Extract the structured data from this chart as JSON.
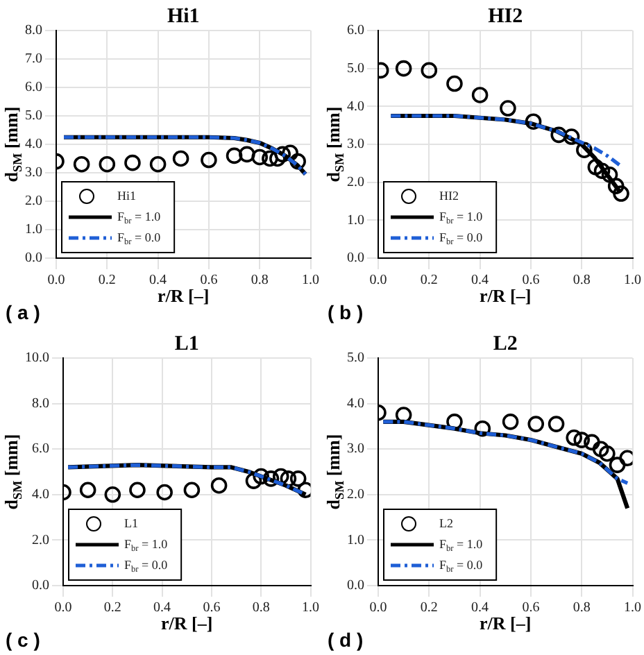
{
  "chart_data": [
    {
      "type": "line",
      "title": "Hi1",
      "xlabel": "r/R [–]",
      "ylabel": "d$_{SM}$ [mm]",
      "annotations": [
        "( a )"
      ],
      "grid": true,
      "legend": "bottom left",
      "xlim": [
        0,
        1
      ],
      "xticks": [
        {
          "value": 0,
          "label": "0.0"
        },
        {
          "value": 0.2,
          "label": "0.2"
        },
        {
          "value": 0.4,
          "label": "0.4"
        },
        {
          "value": 0.6,
          "label": "0.6"
        },
        {
          "value": 0.8,
          "label": "0.8"
        },
        {
          "value": 1,
          "label": "1.0"
        }
      ],
      "ylim": [
        0,
        8
      ],
      "yticks": [
        {
          "value": 0,
          "label": "0.0"
        },
        {
          "value": 1,
          "label": "1.0"
        },
        {
          "value": 2,
          "label": "2.0"
        },
        {
          "value": 3,
          "label": "3.0"
        },
        {
          "value": 4,
          "label": "4.0"
        },
        {
          "value": 5,
          "label": "5.0"
        },
        {
          "value": 6,
          "label": "6.0"
        },
        {
          "value": 7,
          "label": "7.0"
        },
        {
          "value": 8,
          "label": "8.0"
        }
      ],
      "series": [
        {
          "name": "Hi1",
          "type": "scatter",
          "marker": "circle",
          "color": "#000000",
          "x": [
            0.0,
            0.1,
            0.2,
            0.3,
            0.4,
            0.49,
            0.6,
            0.7,
            0.75,
            0.8,
            0.84,
            0.87,
            0.89,
            0.92,
            0.95
          ],
          "values": [
            3.4,
            3.3,
            3.3,
            3.35,
            3.3,
            3.5,
            3.45,
            3.6,
            3.65,
            3.55,
            3.5,
            3.5,
            3.65,
            3.7,
            3.4
          ]
        },
        {
          "name": "F$_{br}$ = 1.0",
          "type": "line",
          "line_style": "solid",
          "color": "#000000",
          "x": [
            0.03,
            0.3,
            0.6,
            0.7,
            0.75,
            0.8,
            0.85,
            0.9,
            0.95,
            0.98
          ],
          "values": [
            4.25,
            4.25,
            4.25,
            4.22,
            4.15,
            4.05,
            3.85,
            3.6,
            3.25,
            2.95
          ]
        },
        {
          "name": "F$_{br}$ = 0.0",
          "type": "line",
          "line_style": "dashed",
          "color": "#1f5fd6",
          "x": [
            0.03,
            0.3,
            0.6,
            0.7,
            0.75,
            0.8,
            0.85,
            0.9,
            0.95,
            0.98
          ],
          "values": [
            4.25,
            4.25,
            4.25,
            4.22,
            4.15,
            4.05,
            3.85,
            3.6,
            3.25,
            2.95
          ]
        }
      ]
    },
    {
      "type": "line",
      "title": "HI2",
      "xlabel": "r/R [–]",
      "ylabel": "d$_{SM}$ [mm]",
      "annotations": [
        "( b )"
      ],
      "grid": true,
      "legend": "bottom left",
      "xlim": [
        0,
        1
      ],
      "xticks": [
        {
          "value": 0,
          "label": "0.0"
        },
        {
          "value": 0.2,
          "label": "0.2"
        },
        {
          "value": 0.4,
          "label": "0.4"
        },
        {
          "value": 0.6,
          "label": "0.6"
        },
        {
          "value": 0.8,
          "label": "0.8"
        },
        {
          "value": 1,
          "label": "1.0"
        }
      ],
      "ylim": [
        0,
        6
      ],
      "yticks": [
        {
          "value": 0,
          "label": "0.0"
        },
        {
          "value": 1,
          "label": "1.0"
        },
        {
          "value": 2,
          "label": "2.0"
        },
        {
          "value": 3,
          "label": "3.0"
        },
        {
          "value": 4,
          "label": "4.0"
        },
        {
          "value": 5,
          "label": "5.0"
        },
        {
          "value": 6,
          "label": "6.0"
        }
      ],
      "series": [
        {
          "name": "HI2",
          "type": "scatter",
          "marker": "circle",
          "color": "#000000",
          "x": [
            0.01,
            0.1,
            0.2,
            0.3,
            0.4,
            0.51,
            0.61,
            0.71,
            0.76,
            0.81,
            0.855,
            0.88,
            0.91,
            0.935,
            0.955
          ],
          "values": [
            4.95,
            5.0,
            4.95,
            4.6,
            4.3,
            3.95,
            3.6,
            3.25,
            3.2,
            2.85,
            2.4,
            2.3,
            2.2,
            1.9,
            1.7
          ]
        },
        {
          "name": "F$_{br}$ = 1.0",
          "type": "line",
          "line_style": "solid",
          "color": "#000000",
          "x": [
            0.05,
            0.3,
            0.5,
            0.6,
            0.7,
            0.8,
            0.85,
            0.9,
            0.95
          ],
          "values": [
            3.75,
            3.75,
            3.65,
            3.55,
            3.35,
            3.0,
            2.65,
            2.2,
            1.75
          ]
        },
        {
          "name": "F$_{br}$ = 0.0",
          "type": "line",
          "line_style": "dashed",
          "color": "#1f5fd6",
          "x": [
            0.05,
            0.3,
            0.5,
            0.6,
            0.7,
            0.8,
            0.85,
            0.9,
            0.96
          ],
          "values": [
            3.75,
            3.75,
            3.65,
            3.55,
            3.35,
            3.05,
            2.9,
            2.7,
            2.4
          ]
        }
      ]
    },
    {
      "type": "line",
      "title": "L1",
      "xlabel": "r/R [–]",
      "ylabel": "d$_{SM}$ [mm]",
      "annotations": [
        "( c )"
      ],
      "grid": true,
      "legend": "bottom left",
      "xlim": [
        0,
        1
      ],
      "xticks": [
        {
          "value": 0,
          "label": "0.0"
        },
        {
          "value": 0.2,
          "label": "0.2"
        },
        {
          "value": 0.4,
          "label": "0.4"
        },
        {
          "value": 0.6,
          "label": "0.6"
        },
        {
          "value": 0.8,
          "label": "0.8"
        },
        {
          "value": 1,
          "label": "1.0"
        }
      ],
      "ylim": [
        0,
        10
      ],
      "yticks": [
        {
          "value": 0,
          "label": "0.0"
        },
        {
          "value": 2,
          "label": "2.0"
        },
        {
          "value": 4,
          "label": "4.0"
        },
        {
          "value": 6,
          "label": "6.0"
        },
        {
          "value": 8,
          "label": "8.0"
        },
        {
          "value": 10,
          "label": "10.0"
        }
      ],
      "series": [
        {
          "name": "L1",
          "type": "scatter",
          "marker": "circle",
          "color": "#000000",
          "x": [
            0.0,
            0.1,
            0.2,
            0.3,
            0.41,
            0.52,
            0.63,
            0.77,
            0.8,
            0.84,
            0.88,
            0.91,
            0.95,
            0.98
          ],
          "values": [
            4.1,
            4.2,
            4.0,
            4.2,
            4.1,
            4.2,
            4.4,
            4.6,
            4.8,
            4.7,
            4.8,
            4.7,
            4.7,
            4.2
          ]
        },
        {
          "name": "F$_{br}$ = 1.0",
          "type": "line",
          "line_style": "solid",
          "color": "#000000",
          "x": [
            0.02,
            0.3,
            0.6,
            0.68,
            0.75,
            0.8,
            0.9,
            0.98
          ],
          "values": [
            5.2,
            5.3,
            5.2,
            5.2,
            5.0,
            4.8,
            4.4,
            4.0
          ]
        },
        {
          "name": "F$_{br}$ = 0.0",
          "type": "line",
          "line_style": "dashed",
          "color": "#1f5fd6",
          "x": [
            0.02,
            0.3,
            0.6,
            0.68,
            0.75,
            0.8,
            0.9,
            0.98
          ],
          "values": [
            5.2,
            5.3,
            5.2,
            5.2,
            5.0,
            4.8,
            4.4,
            4.0
          ]
        }
      ]
    },
    {
      "type": "line",
      "title": "L2",
      "xlabel": "r/R [–]",
      "ylabel": "d$_{SM}$ [mm]",
      "annotations": [
        "( d )"
      ],
      "grid": true,
      "legend": "bottom left",
      "xlim": [
        0,
        1
      ],
      "xticks": [
        {
          "value": 0,
          "label": "0.0"
        },
        {
          "value": 0.2,
          "label": "0.2"
        },
        {
          "value": 0.4,
          "label": "0.4"
        },
        {
          "value": 0.6,
          "label": "0.6"
        },
        {
          "value": 0.8,
          "label": "0.8"
        },
        {
          "value": 1,
          "label": "1.0"
        }
      ],
      "ylim": [
        0,
        5
      ],
      "yticks": [
        {
          "value": 0,
          "label": "0.0"
        },
        {
          "value": 1,
          "label": "1.0"
        },
        {
          "value": 2,
          "label": "2.0"
        },
        {
          "value": 3,
          "label": "3.0"
        },
        {
          "value": 4,
          "label": "4.0"
        },
        {
          "value": 5,
          "label": "5.0"
        }
      ],
      "series": [
        {
          "name": "L2",
          "type": "scatter",
          "marker": "circle",
          "color": "#000000",
          "x": [
            0.0,
            0.1,
            0.3,
            0.41,
            0.52,
            0.62,
            0.7,
            0.77,
            0.8,
            0.84,
            0.875,
            0.9,
            0.94,
            0.98
          ],
          "values": [
            3.8,
            3.75,
            3.6,
            3.45,
            3.6,
            3.55,
            3.55,
            3.25,
            3.2,
            3.15,
            3.0,
            2.9,
            2.65,
            2.8
          ]
        },
        {
          "name": "F$_{br}$ = 1.0",
          "type": "line",
          "line_style": "solid",
          "color": "#000000",
          "x": [
            0.02,
            0.1,
            0.3,
            0.4,
            0.5,
            0.6,
            0.7,
            0.8,
            0.87,
            0.94,
            0.98
          ],
          "values": [
            3.6,
            3.6,
            3.45,
            3.35,
            3.3,
            3.2,
            3.05,
            2.9,
            2.7,
            2.35,
            1.7
          ]
        },
        {
          "name": "F$_{br}$ = 0.0",
          "type": "line",
          "line_style": "dashed",
          "color": "#1f5fd6",
          "x": [
            0.02,
            0.1,
            0.3,
            0.4,
            0.5,
            0.6,
            0.7,
            0.8,
            0.87,
            0.94,
            0.98
          ],
          "values": [
            3.6,
            3.6,
            3.45,
            3.35,
            3.3,
            3.2,
            3.05,
            2.9,
            2.7,
            2.35,
            2.25
          ]
        }
      ]
    }
  ]
}
